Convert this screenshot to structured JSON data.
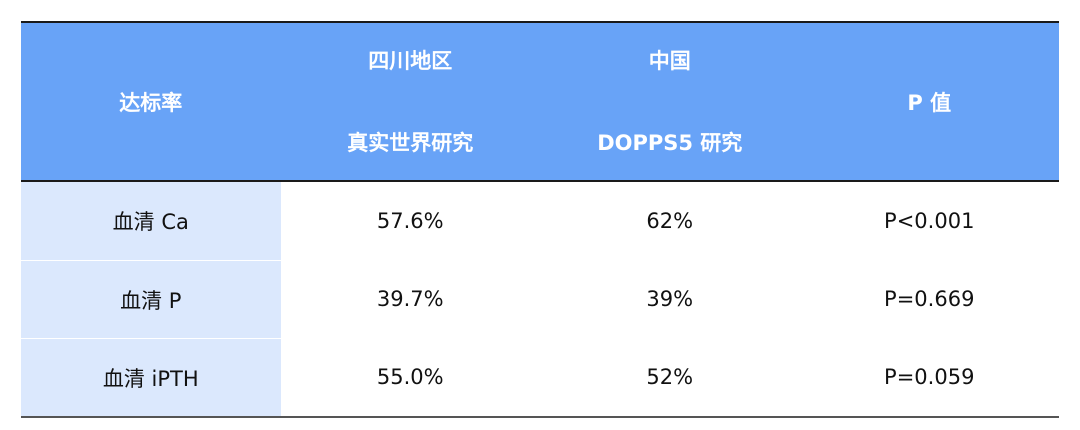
{
  "header": {
    "col1": "达标率",
    "col2_line1": "四川地区",
    "col2_line2": "真实世界研究",
    "col3_line1": "中国",
    "col3_line2": "DOPPS5 研究",
    "col4": "P 值"
  },
  "rows": [
    {
      "label": "血清 Ca",
      "sichuan": "57.6%",
      "dopps": "62%",
      "p": "P<0.001"
    },
    {
      "label": "血清 P",
      "sichuan": "39.7%",
      "dopps": "39%",
      "p": "P=0.669"
    },
    {
      "label": "血清 iPTH",
      "sichuan": "55.0%",
      "dopps": "52%",
      "p": "P=0.059"
    }
  ],
  "colors": {
    "header_bg": "#68a3f7",
    "first_col_bg": "#dbe8fd"
  }
}
